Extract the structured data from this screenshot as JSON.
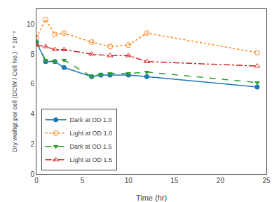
{
  "chart_data": {
    "type": "line",
    "xlabel": "Time (hr)",
    "ylabel": "Dry weihgt per cell (DCW / Cell No.)  * 10⁻⁹",
    "series": [
      {
        "name": "Dark at OD 1.0",
        "x": [
          0,
          1,
          2,
          3,
          6,
          7,
          8,
          10,
          12,
          24
        ],
        "values": [
          8.8,
          7.5,
          7.5,
          7.1,
          6.5,
          6.6,
          6.6,
          6.6,
          6.5,
          5.8
        ],
        "marker": "circle",
        "line_style": "solid"
      },
      {
        "name": "Light at OD 1.0",
        "x": [
          0,
          1,
          2,
          3,
          6,
          8,
          10,
          12,
          24
        ],
        "values": [
          9.1,
          10.3,
          9.3,
          9.4,
          8.8,
          8.5,
          8.6,
          9.4,
          8.1
        ],
        "marker": "circle-open",
        "line_style": "dot"
      },
      {
        "name": "Dark at OD 1.5",
        "x": [
          0,
          1,
          2,
          3,
          6,
          7,
          8,
          10,
          12,
          24
        ],
        "values": [
          8.8,
          7.6,
          7.5,
          7.6,
          6.5,
          6.65,
          6.7,
          6.7,
          6.8,
          6.1
        ],
        "marker": "triangle-down",
        "line_style": "dash"
      },
      {
        "name": "Light at OD 1.5",
        "x": [
          0,
          1,
          2,
          3,
          6,
          8,
          10,
          12,
          24
        ],
        "values": [
          8.6,
          8.5,
          8.3,
          8.3,
          8.0,
          7.9,
          7.9,
          7.5,
          7.2
        ],
        "marker": "triangle-up-open",
        "line_style": "dashdot"
      }
    ],
    "xlim": [
      0,
      25
    ],
    "ylim": [
      0,
      11
    ],
    "xticks": [
      0,
      5,
      10,
      15,
      20,
      25
    ],
    "yticks": [
      0,
      2,
      4,
      6,
      8,
      10
    ],
    "grid": false,
    "legend": "lower left"
  }
}
